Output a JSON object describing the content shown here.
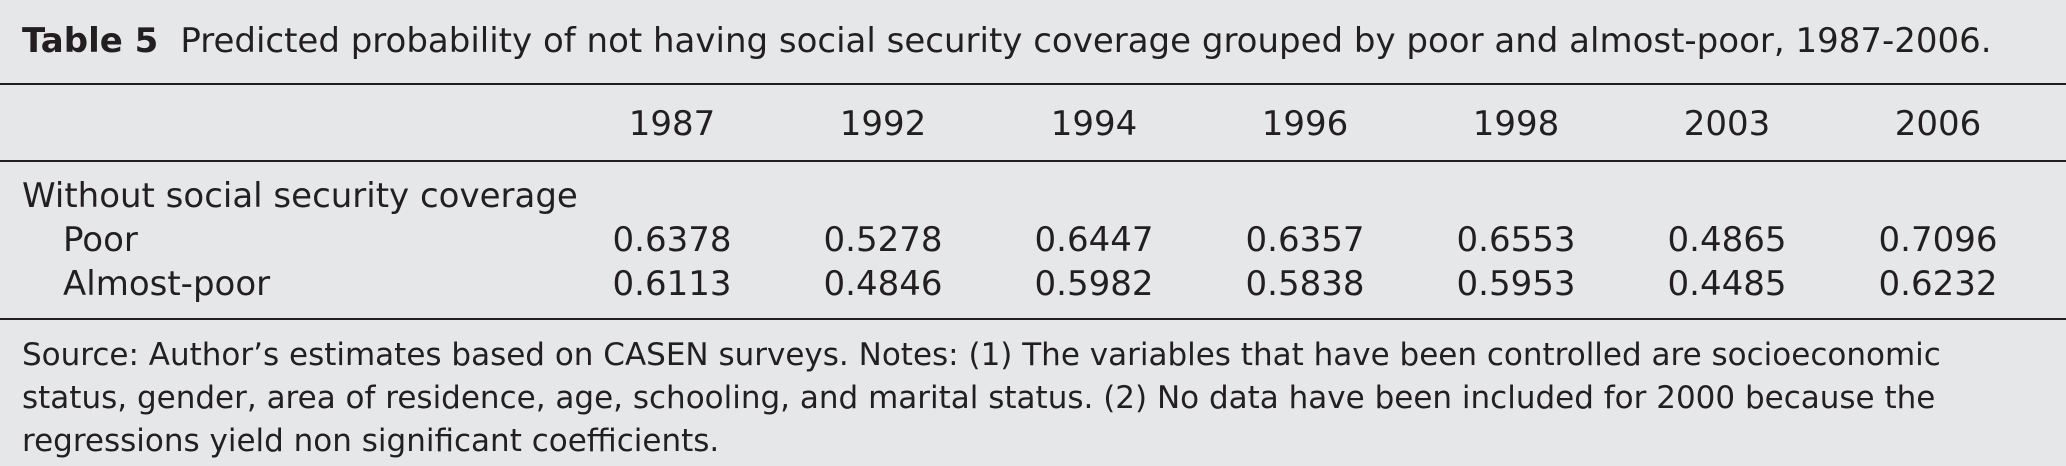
{
  "table": {
    "label": "Table 5",
    "title": "Predicted probability of not having social security coverage grouped by poor and almost-poor, 1987-2006.",
    "columns": [
      "1987",
      "1992",
      "1994",
      "1996",
      "1998",
      "2003",
      "2006"
    ],
    "group_label": "Without social security coverage",
    "rows": [
      {
        "label": "Poor",
        "values": [
          "0.6378",
          "0.5278",
          "0.6447",
          "0.6357",
          "0.6553",
          "0.4865",
          "0.7096"
        ]
      },
      {
        "label": "Almost-poor",
        "values": [
          "0.6113",
          "0.4846",
          "0.5982",
          "0.5838",
          "0.5953",
          "0.4485",
          "0.6232"
        ]
      }
    ],
    "source_note": "Source: Author’s estimates based on CASEN surveys. Notes: (1) The variables that have been controlled are socioeconomic status, gender, area of residence, age, schooling, and marital status. (2) No data have been included for 2000 because the regressions yield non significant coefficients."
  }
}
